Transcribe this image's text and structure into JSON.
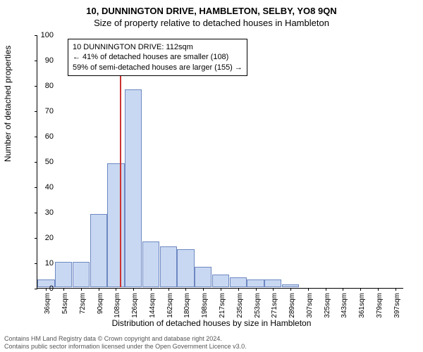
{
  "title_line1": "10, DUNNINGTON DRIVE, HAMBLETON, SELBY, YO8 9QN",
  "title_line2": "Size of property relative to detached houses in Hambleton",
  "ylabel": "Number of detached properties",
  "xlabel": "Distribution of detached houses by size in Hambleton",
  "chart": {
    "type": "histogram",
    "ylim": [
      0,
      100
    ],
    "ytick_step": 10,
    "bar_fill": "#c9d8f2",
    "bar_stroke": "#6d88c2",
    "marker_color": "#cc3333",
    "marker_x": 112,
    "background": "#ffffff",
    "categories": [
      "36sqm",
      "54sqm",
      "72sqm",
      "90sqm",
      "108sqm",
      "126sqm",
      "144sqm",
      "162sqm",
      "180sqm",
      "198sqm",
      "217sqm",
      "235sqm",
      "253sqm",
      "271sqm",
      "289sqm",
      "307sqm",
      "325sqm",
      "343sqm",
      "361sqm",
      "379sqm",
      "397sqm"
    ],
    "values": [
      3,
      10,
      10,
      29,
      49,
      78,
      18,
      16,
      15,
      8,
      5,
      4,
      3,
      3,
      1,
      0,
      0,
      0,
      0,
      0,
      0
    ]
  },
  "annotation": {
    "line1": "10 DUNNINGTON DRIVE: 112sqm",
    "line2": "← 41% of detached houses are smaller (108)",
    "line3": "59% of semi-detached houses are larger (155) →"
  },
  "footer": {
    "line1": "Contains HM Land Registry data © Crown copyright and database right 2024.",
    "line2": "Contains public sector information licensed under the Open Government Licence v3.0."
  }
}
